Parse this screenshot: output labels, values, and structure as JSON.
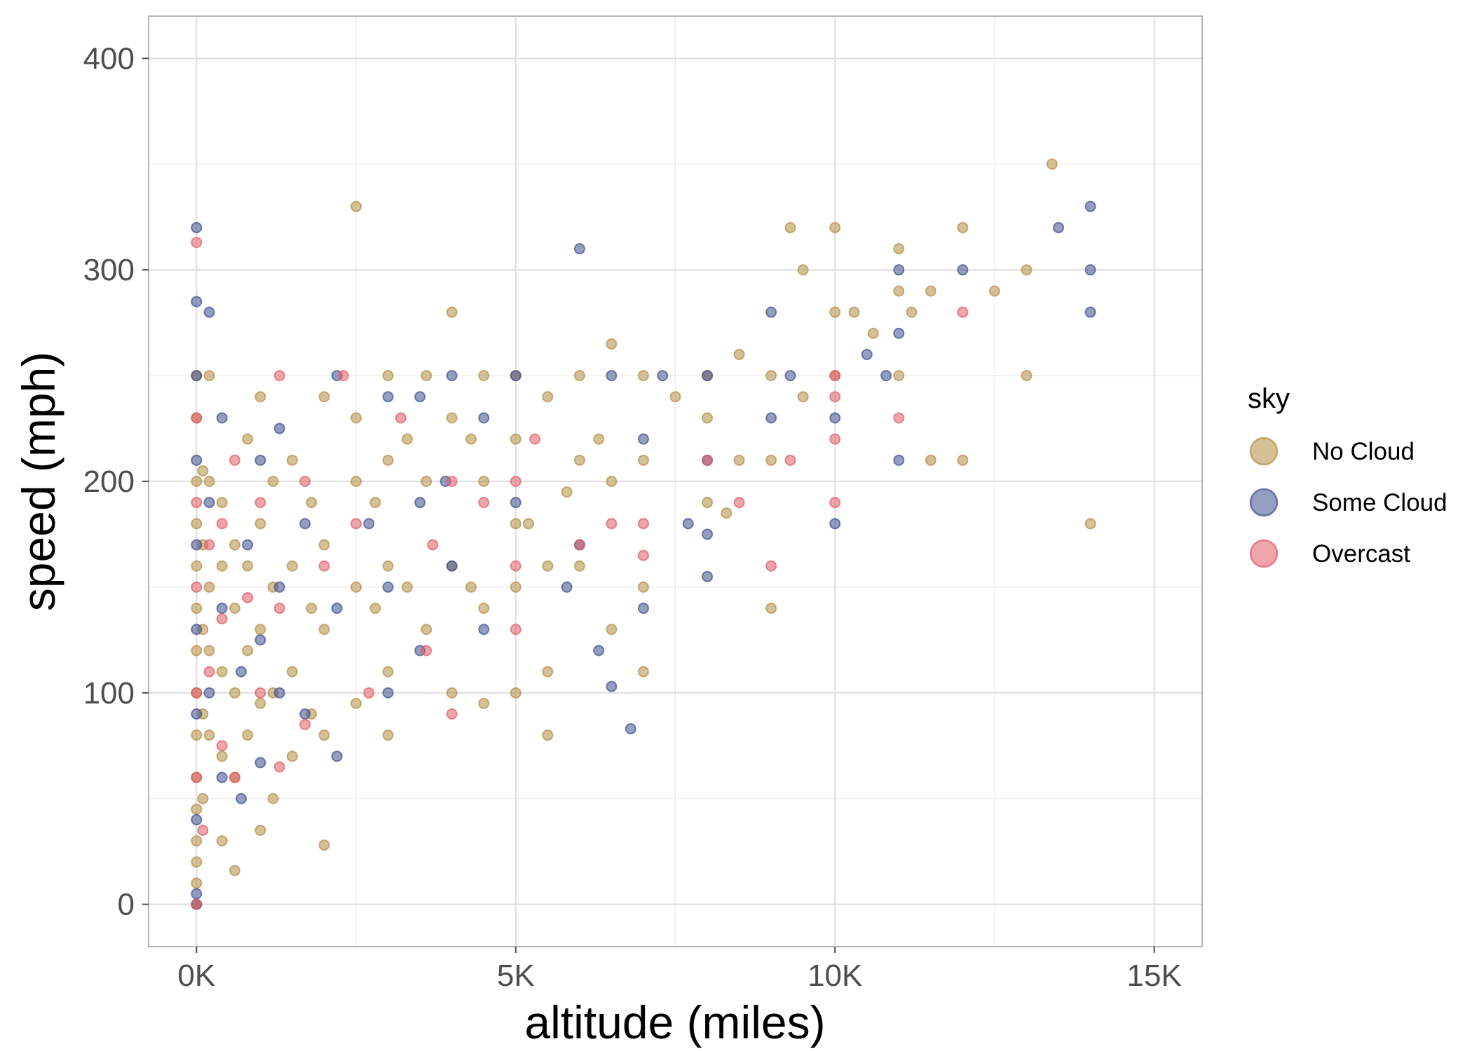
{
  "chart_data": {
    "type": "scatter",
    "title": "",
    "xlabel": "altitude (miles)",
    "ylabel": "speed (mph)",
    "xlim": [
      -750,
      15750
    ],
    "ylim": [
      -20,
      420
    ],
    "x_ticks": [
      0,
      5000,
      10000,
      15000
    ],
    "x_tick_labels": [
      "0K",
      "5K",
      "10K",
      "15K"
    ],
    "y_ticks": [
      0,
      100,
      200,
      300,
      400
    ],
    "y_tick_labels": [
      "0",
      "100",
      "200",
      "300",
      "400"
    ],
    "grid": true,
    "legend": {
      "title": "sky",
      "placement": "right"
    },
    "series": [
      {
        "name": "No Cloud",
        "color": "#B38E44",
        "points": [
          [
            0,
            0
          ],
          [
            0,
            10
          ],
          [
            0,
            20
          ],
          [
            0,
            30
          ],
          [
            0,
            45
          ],
          [
            0,
            60
          ],
          [
            0,
            80
          ],
          [
            0,
            100
          ],
          [
            0,
            120
          ],
          [
            0,
            140
          ],
          [
            0,
            160
          ],
          [
            0,
            180
          ],
          [
            0,
            200
          ],
          [
            0,
            230
          ],
          [
            0,
            250
          ],
          [
            100,
            50
          ],
          [
            100,
            90
          ],
          [
            100,
            130
          ],
          [
            100,
            170
          ],
          [
            100,
            205
          ],
          [
            200,
            80
          ],
          [
            200,
            120
          ],
          [
            200,
            150
          ],
          [
            200,
            200
          ],
          [
            200,
            250
          ],
          [
            400,
            30
          ],
          [
            400,
            70
          ],
          [
            400,
            110
          ],
          [
            400,
            160
          ],
          [
            400,
            190
          ],
          [
            600,
            16
          ],
          [
            600,
            60
          ],
          [
            600,
            100
          ],
          [
            600,
            140
          ],
          [
            600,
            170
          ],
          [
            800,
            80
          ],
          [
            800,
            120
          ],
          [
            800,
            160
          ],
          [
            800,
            220
          ],
          [
            1000,
            35
          ],
          [
            1000,
            95
          ],
          [
            1000,
            130
          ],
          [
            1000,
            180
          ],
          [
            1000,
            240
          ],
          [
            1200,
            50
          ],
          [
            1200,
            100
          ],
          [
            1200,
            150
          ],
          [
            1200,
            200
          ],
          [
            1500,
            70
          ],
          [
            1500,
            110
          ],
          [
            1500,
            160
          ],
          [
            1500,
            210
          ],
          [
            1800,
            90
          ],
          [
            1800,
            140
          ],
          [
            1800,
            190
          ],
          [
            2000,
            28
          ],
          [
            2000,
            80
          ],
          [
            2000,
            130
          ],
          [
            2000,
            170
          ],
          [
            2000,
            240
          ],
          [
            2500,
            95
          ],
          [
            2500,
            150
          ],
          [
            2500,
            200
          ],
          [
            2500,
            230
          ],
          [
            2500,
            330
          ],
          [
            2800,
            140
          ],
          [
            2800,
            190
          ],
          [
            3000,
            80
          ],
          [
            3000,
            110
          ],
          [
            3000,
            160
          ],
          [
            3000,
            210
          ],
          [
            3000,
            250
          ],
          [
            3300,
            150
          ],
          [
            3300,
            220
          ],
          [
            3600,
            130
          ],
          [
            3600,
            200
          ],
          [
            3600,
            250
          ],
          [
            4000,
            100
          ],
          [
            4000,
            160
          ],
          [
            4000,
            230
          ],
          [
            4000,
            280
          ],
          [
            4300,
            150
          ],
          [
            4300,
            220
          ],
          [
            4500,
            95
          ],
          [
            4500,
            140
          ],
          [
            4500,
            200
          ],
          [
            4500,
            250
          ],
          [
            5000,
            100
          ],
          [
            5000,
            150
          ],
          [
            5000,
            180
          ],
          [
            5000,
            220
          ],
          [
            5000,
            250
          ],
          [
            5200,
            180
          ],
          [
            5500,
            80
          ],
          [
            5500,
            110
          ],
          [
            5500,
            160
          ],
          [
            5500,
            240
          ],
          [
            5800,
            195
          ],
          [
            6000,
            160
          ],
          [
            6000,
            210
          ],
          [
            6000,
            250
          ],
          [
            6300,
            220
          ],
          [
            6500,
            130
          ],
          [
            6500,
            200
          ],
          [
            6500,
            265
          ],
          [
            7000,
            110
          ],
          [
            7000,
            150
          ],
          [
            7000,
            210
          ],
          [
            7000,
            250
          ],
          [
            7500,
            240
          ],
          [
            8000,
            190
          ],
          [
            8000,
            230
          ],
          [
            8000,
            250
          ],
          [
            8300,
            185
          ],
          [
            8500,
            210
          ],
          [
            8500,
            260
          ],
          [
            9000,
            140
          ],
          [
            9000,
            210
          ],
          [
            9000,
            250
          ],
          [
            9300,
            320
          ],
          [
            9500,
            240
          ],
          [
            9500,
            300
          ],
          [
            10000,
            250
          ],
          [
            10000,
            280
          ],
          [
            10000,
            320
          ],
          [
            10300,
            280
          ],
          [
            10600,
            270
          ],
          [
            11000,
            250
          ],
          [
            11000,
            290
          ],
          [
            11000,
            310
          ],
          [
            11200,
            280
          ],
          [
            11500,
            210
          ],
          [
            11500,
            290
          ],
          [
            12000,
            210
          ],
          [
            12000,
            320
          ],
          [
            12500,
            290
          ],
          [
            13000,
            250
          ],
          [
            13000,
            300
          ],
          [
            13400,
            350
          ],
          [
            14000,
            180
          ]
        ]
      },
      {
        "name": "Some Cloud",
        "color": "#3E4F8E",
        "points": [
          [
            0,
            0
          ],
          [
            0,
            5
          ],
          [
            0,
            40
          ],
          [
            0,
            90
          ],
          [
            0,
            130
          ],
          [
            0,
            170
          ],
          [
            0,
            210
          ],
          [
            0,
            250
          ],
          [
            0,
            285
          ],
          [
            0,
            320
          ],
          [
            200,
            280
          ],
          [
            200,
            100
          ],
          [
            200,
            190
          ],
          [
            400,
            60
          ],
          [
            400,
            140
          ],
          [
            400,
            230
          ],
          [
            700,
            50
          ],
          [
            700,
            110
          ],
          [
            800,
            170
          ],
          [
            1000,
            67
          ],
          [
            1000,
            125
          ],
          [
            1000,
            210
          ],
          [
            1300,
            100
          ],
          [
            1300,
            150
          ],
          [
            1300,
            225
          ],
          [
            1700,
            90
          ],
          [
            1700,
            180
          ],
          [
            2200,
            70
          ],
          [
            2200,
            140
          ],
          [
            2200,
            250
          ],
          [
            2700,
            180
          ],
          [
            3000,
            100
          ],
          [
            3000,
            150
          ],
          [
            3000,
            240
          ],
          [
            3500,
            120
          ],
          [
            3500,
            190
          ],
          [
            3500,
            240
          ],
          [
            3900,
            200
          ],
          [
            4000,
            250
          ],
          [
            4000,
            160
          ],
          [
            4500,
            130
          ],
          [
            4500,
            230
          ],
          [
            5000,
            190
          ],
          [
            5000,
            250
          ],
          [
            5800,
            150
          ],
          [
            6000,
            170
          ],
          [
            6000,
            310
          ],
          [
            6300,
            120
          ],
          [
            6500,
            103
          ],
          [
            6500,
            250
          ],
          [
            6800,
            83
          ],
          [
            7000,
            140
          ],
          [
            7000,
            220
          ],
          [
            7300,
            250
          ],
          [
            7700,
            180
          ],
          [
            8000,
            155
          ],
          [
            8000,
            175
          ],
          [
            8000,
            210
          ],
          [
            8000,
            250
          ],
          [
            9000,
            230
          ],
          [
            9000,
            280
          ],
          [
            9300,
            250
          ],
          [
            10000,
            180
          ],
          [
            10000,
            230
          ],
          [
            10500,
            260
          ],
          [
            10800,
            250
          ],
          [
            11000,
            210
          ],
          [
            11000,
            270
          ],
          [
            11000,
            300
          ],
          [
            12000,
            300
          ],
          [
            13500,
            320
          ],
          [
            14000,
            280
          ],
          [
            14000,
            300
          ],
          [
            14000,
            330
          ]
        ]
      },
      {
        "name": "Overcast",
        "color": "#E05C66",
        "points": [
          [
            0,
            0
          ],
          [
            0,
            60
          ],
          [
            0,
            100
          ],
          [
            0,
            150
          ],
          [
            0,
            190
          ],
          [
            0,
            230
          ],
          [
            0,
            313
          ],
          [
            100,
            35
          ],
          [
            200,
            110
          ],
          [
            200,
            170
          ],
          [
            400,
            75
          ],
          [
            400,
            135
          ],
          [
            400,
            180
          ],
          [
            600,
            60
          ],
          [
            600,
            210
          ],
          [
            800,
            145
          ],
          [
            1000,
            100
          ],
          [
            1000,
            190
          ],
          [
            1300,
            65
          ],
          [
            1300,
            140
          ],
          [
            1300,
            250
          ],
          [
            1700,
            85
          ],
          [
            1700,
            200
          ],
          [
            2000,
            160
          ],
          [
            2300,
            250
          ],
          [
            2500,
            180
          ],
          [
            2700,
            100
          ],
          [
            3200,
            230
          ],
          [
            3600,
            120
          ],
          [
            3700,
            170
          ],
          [
            4000,
            90
          ],
          [
            4000,
            200
          ],
          [
            4500,
            190
          ],
          [
            5000,
            130
          ],
          [
            5000,
            160
          ],
          [
            5000,
            200
          ],
          [
            5300,
            220
          ],
          [
            6000,
            170
          ],
          [
            6500,
            180
          ],
          [
            7000,
            165
          ],
          [
            7000,
            180
          ],
          [
            8000,
            210
          ],
          [
            8500,
            190
          ],
          [
            9000,
            160
          ],
          [
            9300,
            210
          ],
          [
            10000,
            190
          ],
          [
            10000,
            220
          ],
          [
            10000,
            240
          ],
          [
            10000,
            250
          ],
          [
            11000,
            230
          ],
          [
            12000,
            280
          ]
        ]
      }
    ]
  }
}
